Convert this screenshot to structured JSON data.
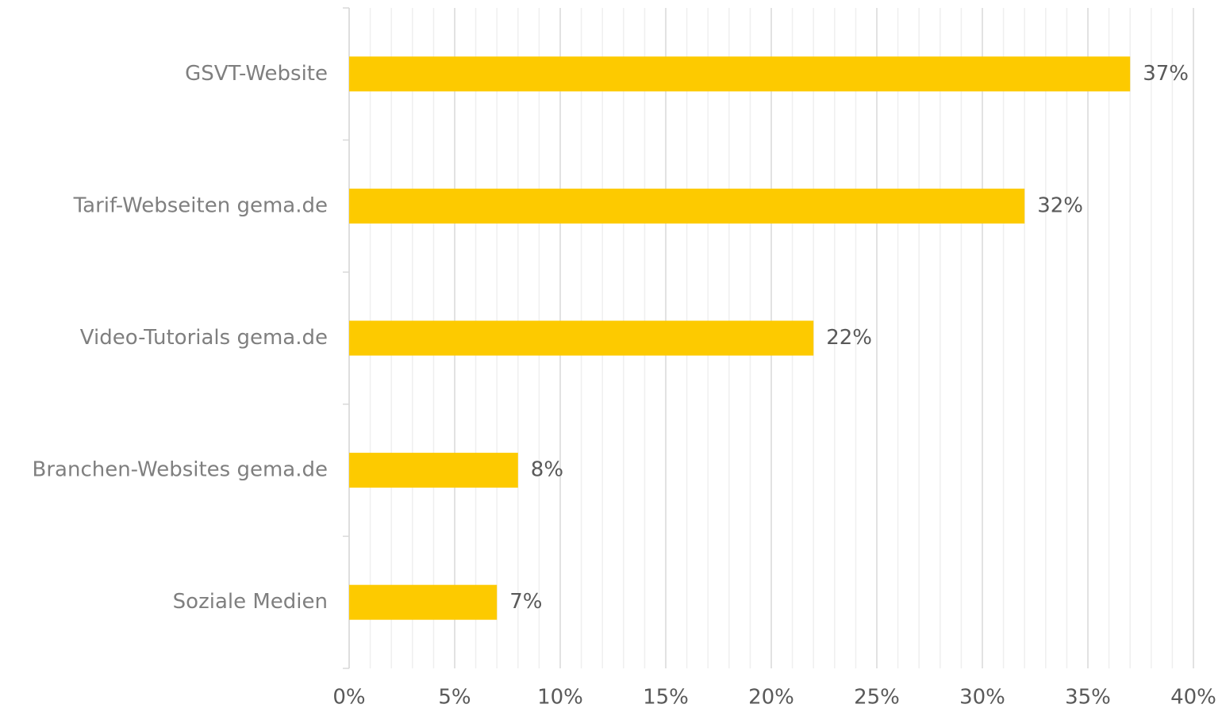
{
  "chart_data": {
    "type": "hbar",
    "categories": [
      "GSVT-Website",
      "Tarif-Webseiten gema.de",
      "Video-Tutorials gema.de",
      "Branchen-Websites gema.de",
      "Soziale Medien"
    ],
    "values": [
      37,
      32,
      22,
      8,
      7
    ],
    "value_labels": [
      "37%",
      "32%",
      "22%",
      "8%",
      "7%"
    ],
    "color": "#fdca00",
    "xlim": [
      0,
      40
    ],
    "xticks": [
      {
        "value": 0,
        "label": "0%"
      },
      {
        "value": 5,
        "label": "5%"
      },
      {
        "value": 10,
        "label": "10%"
      },
      {
        "value": 15,
        "label": "15%"
      },
      {
        "value": 20,
        "label": "20%"
      },
      {
        "value": 25,
        "label": "25%"
      },
      {
        "value": 30,
        "label": "30%"
      },
      {
        "value": 35,
        "label": "35%"
      },
      {
        "value": 40,
        "label": "40%"
      }
    ],
    "xminorticks": [
      1,
      2,
      3,
      4,
      6,
      7,
      8,
      9,
      11,
      12,
      13,
      14,
      16,
      17,
      18,
      19,
      21,
      22,
      23,
      24,
      26,
      27,
      28,
      29,
      31,
      32,
      33,
      34,
      36,
      37,
      38,
      39
    ],
    "grid": true
  }
}
